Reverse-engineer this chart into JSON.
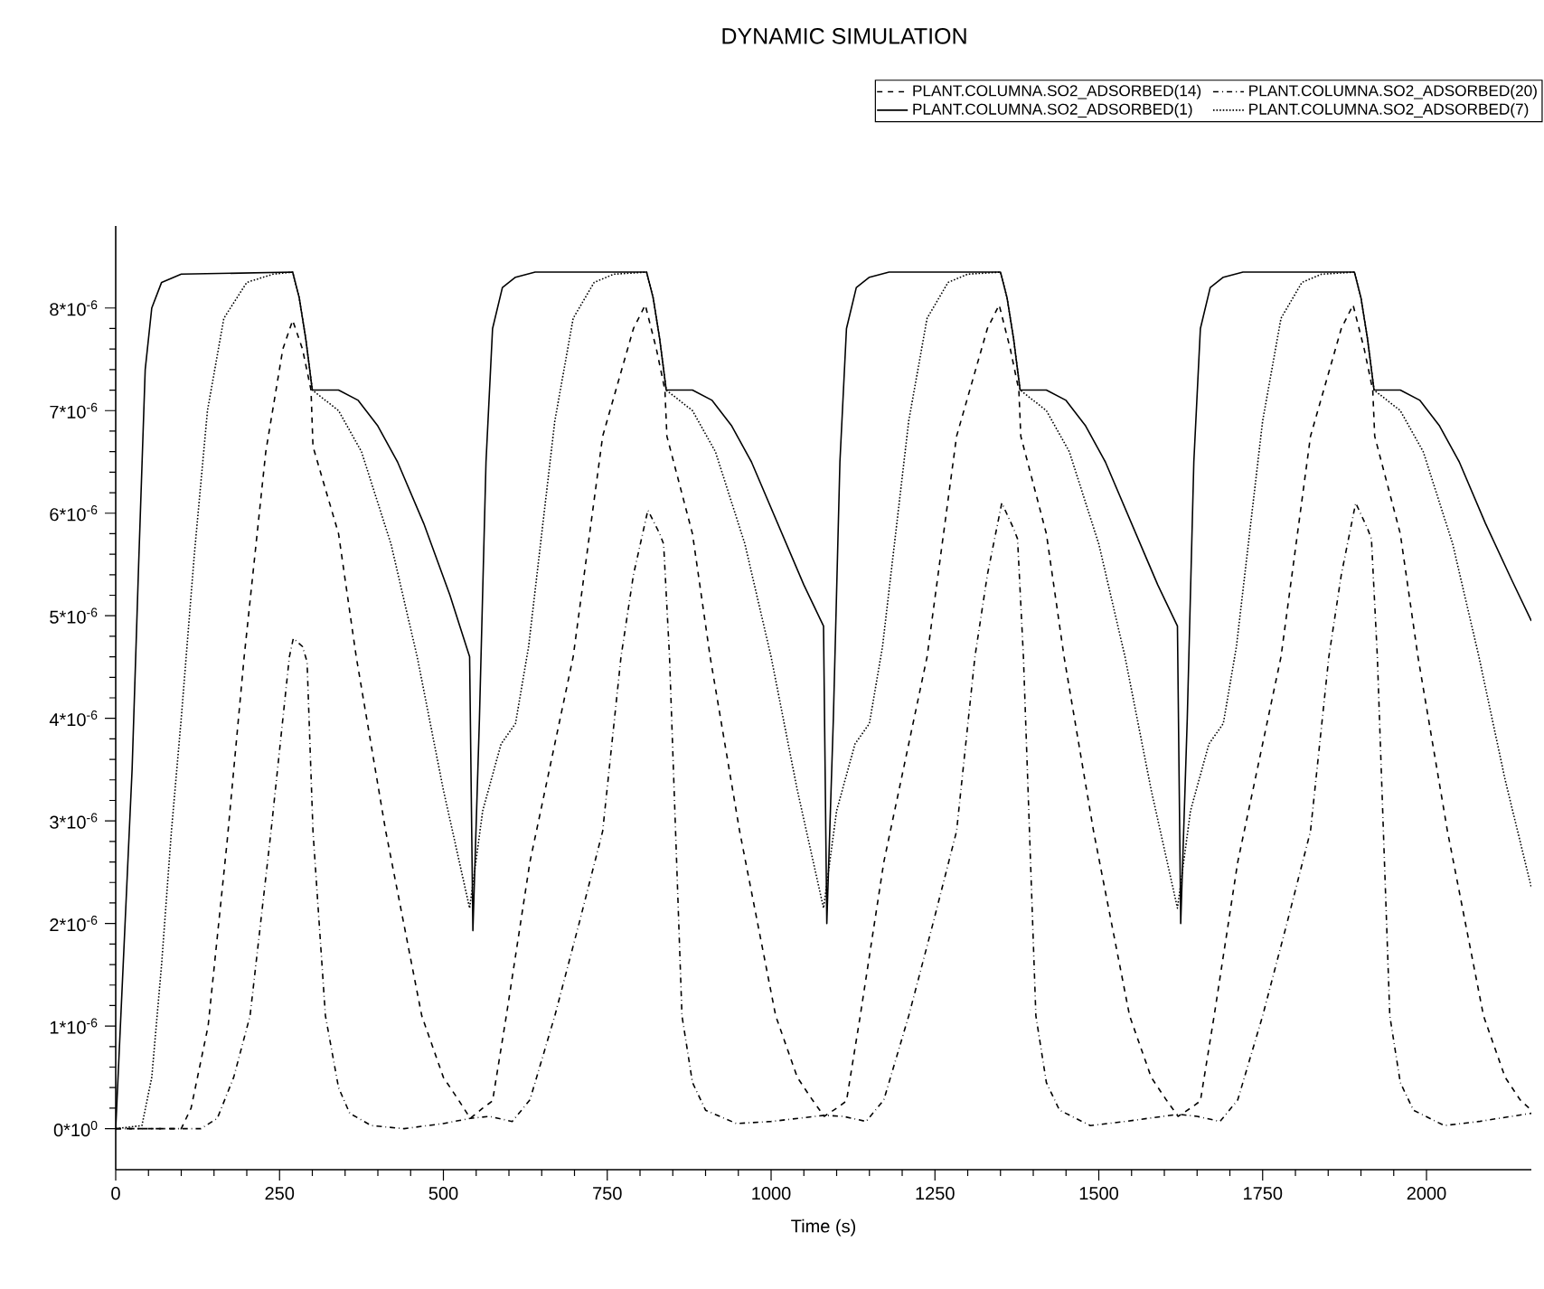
{
  "chart_data": {
    "type": "line",
    "title": "DYNAMIC SIMULATION",
    "xlabel": "Time (s)",
    "xlim": [
      0,
      2160
    ],
    "ylim": [
      -4e-07,
      8.8e-06
    ],
    "xticks": [
      0,
      250,
      500,
      750,
      1000,
      1250,
      1500,
      1750,
      2000
    ],
    "yticks": [
      {
        "value": 0,
        "label": "0*10$^{0}$"
      },
      {
        "value": 1e-06,
        "label": "1*10$^{-6}$"
      },
      {
        "value": 2e-06,
        "label": "2*10$^{-6}$"
      },
      {
        "value": 3e-06,
        "label": "3*10$^{-6}$"
      },
      {
        "value": 4e-06,
        "label": "4*10$^{-6}$"
      },
      {
        "value": 5e-06,
        "label": "5*10$^{-6}$"
      },
      {
        "value": 6e-06,
        "label": "6*10$^{-6}$"
      },
      {
        "value": 7e-06,
        "label": "7*10$^{-6}$"
      },
      {
        "value": 8e-06,
        "label": "8*10$^{-6}$"
      }
    ],
    "legend": "top",
    "grid": false,
    "marker": "none",
    "series": [
      {
        "name": "PLANT.COLUMNA.SO2_ADSORBED(14)",
        "color": "#000000",
        "line_style": "dashed",
        "x": [
          0,
          100,
          115,
          141,
          170,
          196,
          229,
          255,
          270,
          285,
          298,
          301,
          340,
          367,
          412,
          467,
          500,
          523,
          541,
          560,
          575,
          596,
          632,
          698,
          743,
          790,
          808,
          825,
          838,
          841,
          880,
          907,
          952,
          1007,
          1040,
          1063,
          1081,
          1100,
          1115,
          1136,
          1172,
          1238,
          1283,
          1330,
          1348,
          1365,
          1378,
          1381,
          1420,
          1447,
          1492,
          1547,
          1580,
          1603,
          1621,
          1640,
          1655,
          1676,
          1712,
          1778,
          1823,
          1870,
          1888,
          1905,
          1918,
          1921,
          1960,
          1987,
          2032,
          2087,
          2120,
          2143,
          2160
        ],
        "values": [
          0,
          0,
          2e-07,
          1e-06,
          2.8e-06,
          4.6e-06,
          6.6e-06,
          7.6e-06,
          7.88e-06,
          7.6e-06,
          7.2e-06,
          6.65e-06,
          5.8e-06,
          4.6e-06,
          2.9e-06,
          1.1e-06,
          5e-07,
          2.8e-07,
          1e-07,
          2e-07,
          2.7e-07,
          1.1e-06,
          2.6e-06,
          4.6e-06,
          6.75e-06,
          7.8e-06,
          8.03e-06,
          7.6e-06,
          7.2e-06,
          6.75e-06,
          5.8e-06,
          4.6e-06,
          2.9e-06,
          1.1e-06,
          5e-07,
          2.8e-07,
          1.2e-07,
          2e-07,
          2.7e-07,
          1.1e-06,
          2.6e-06,
          4.6e-06,
          6.75e-06,
          7.8e-06,
          8.03e-06,
          7.6e-06,
          7.2e-06,
          6.75e-06,
          5.8e-06,
          4.6e-06,
          2.9e-06,
          1.1e-06,
          5e-07,
          2.8e-07,
          1.2e-07,
          2e-07,
          2.7e-07,
          1.1e-06,
          2.6e-06,
          4.6e-06,
          6.75e-06,
          7.8e-06,
          8.03e-06,
          7.6e-06,
          7.2e-06,
          6.75e-06,
          5.8e-06,
          4.6e-06,
          2.9e-06,
          1.1e-06,
          5e-07,
          2.8e-07,
          1.8e-07
        ]
      },
      {
        "name": "PLANT.COLUMNA.SO2_ADSORBED(20)",
        "color": "#000000",
        "line_style": "dashdot",
        "x": [
          0,
          130,
          155,
          180,
          205,
          237,
          265,
          271,
          285,
          292,
          301,
          320,
          340,
          357,
          390,
          440,
          500,
          541,
          570,
          605,
          632,
          670,
          707,
          743,
          771,
          790,
          812,
          830,
          836,
          845,
          864,
          880,
          900,
          947,
          1000,
          1081,
          1110,
          1145,
          1172,
          1210,
          1247,
          1283,
          1311,
          1330,
          1352,
          1370,
          1376,
          1385,
          1404,
          1420,
          1440,
          1487,
          1540,
          1621,
          1650,
          1685,
          1712,
          1750,
          1787,
          1823,
          1851,
          1870,
          1892,
          1910,
          1916,
          1925,
          1944,
          1960,
          1980,
          2027,
          2080,
          2160
        ],
        "values": [
          0,
          0,
          1e-07,
          5e-07,
          1.1e-06,
          2.9e-06,
          4.6e-06,
          4.78e-06,
          4.7e-06,
          4.55e-06,
          2.9e-06,
          1.1e-06,
          4e-07,
          1.5e-07,
          3e-08,
          0,
          5e-08,
          1e-07,
          1.2e-07,
          7e-08,
          2.8e-07,
          1.1e-06,
          2e-06,
          2.9e-06,
          4.6e-06,
          5.4e-06,
          6.03e-06,
          5.8e-06,
          5.7e-06,
          4.6e-06,
          1.1e-06,
          4.5e-07,
          1.8e-07,
          5e-08,
          7e-08,
          1.3e-07,
          1.2e-07,
          7e-08,
          2.8e-07,
          1.1e-06,
          2e-06,
          2.9e-06,
          4.6e-06,
          5.4e-06,
          6.1e-06,
          5.85e-06,
          5.75e-06,
          4.6e-06,
          1.1e-06,
          4.5e-07,
          1.8e-07,
          3e-08,
          7e-08,
          1.4e-07,
          1.2e-07,
          7e-08,
          2.8e-07,
          1.1e-06,
          2e-06,
          2.9e-06,
          4.6e-06,
          5.4e-06,
          6.1e-06,
          5.85e-06,
          5.75e-06,
          4.6e-06,
          1.1e-06,
          4.5e-07,
          1.8e-07,
          3e-08,
          7e-08,
          1.5e-07
        ]
      },
      {
        "name": "PLANT.COLUMNA.SO2_ADSORBED(1)",
        "color": "#000000",
        "line_style": "solid",
        "x": [
          0,
          25,
          35,
          45,
          55,
          70,
          100,
          270,
          280,
          290,
          300,
          340,
          370,
          400,
          430,
          470,
          510,
          540,
          545,
          555,
          565,
          575,
          590,
          610,
          640,
          810,
          820,
          830,
          840,
          880,
          910,
          940,
          970,
          1010,
          1050,
          1080,
          1085,
          1095,
          1105,
          1115,
          1130,
          1150,
          1180,
          1350,
          1360,
          1370,
          1380,
          1420,
          1450,
          1480,
          1510,
          1550,
          1590,
          1620,
          1625,
          1635,
          1645,
          1655,
          1670,
          1690,
          1720,
          1890,
          1900,
          1910,
          1920,
          1960,
          1990,
          2020,
          2050,
          2090,
          2130,
          2160
        ],
        "values": [
          0,
          3.5e-06,
          5.5e-06,
          7.4e-06,
          8e-06,
          8.25e-06,
          8.33e-06,
          8.35e-06,
          8.1e-06,
          7.7e-06,
          7.2e-06,
          7.2e-06,
          7.1e-06,
          6.85e-06,
          6.5e-06,
          5.9e-06,
          5.2e-06,
          4.6e-06,
          1.93e-06,
          4e-06,
          6.5e-06,
          7.8e-06,
          8.2e-06,
          8.3e-06,
          8.35e-06,
          8.35e-06,
          8.1e-06,
          7.7e-06,
          7.2e-06,
          7.2e-06,
          7.1e-06,
          6.85e-06,
          6.5e-06,
          5.9e-06,
          5.3e-06,
          4.9e-06,
          2e-06,
          4e-06,
          6.5e-06,
          7.8e-06,
          8.2e-06,
          8.3e-06,
          8.35e-06,
          8.35e-06,
          8.1e-06,
          7.7e-06,
          7.2e-06,
          7.2e-06,
          7.1e-06,
          6.85e-06,
          6.5e-06,
          5.9e-06,
          5.3e-06,
          4.9e-06,
          2e-06,
          4e-06,
          6.5e-06,
          7.8e-06,
          8.2e-06,
          8.3e-06,
          8.35e-06,
          8.35e-06,
          8.1e-06,
          7.7e-06,
          7.2e-06,
          7.2e-06,
          7.1e-06,
          6.85e-06,
          6.5e-06,
          5.9e-06,
          5.35e-06,
          4.95e-06
        ]
      },
      {
        "name": "PLANT.COLUMNA.SO2_ADSORBED(7)",
        "color": "#000000",
        "line_style": "dotted",
        "x": [
          0,
          40,
          55,
          70,
          85,
          100,
          120,
          140,
          165,
          200,
          240,
          270,
          280,
          290,
          300,
          310,
          340,
          375,
          420,
          460,
          500,
          540,
          560,
          588,
          610,
          630,
          650,
          670,
          698,
          730,
          760,
          810,
          820,
          830,
          840,
          850,
          880,
          915,
          960,
          1000,
          1040,
          1080,
          1100,
          1128,
          1150,
          1170,
          1190,
          1210,
          1238,
          1270,
          1300,
          1350,
          1360,
          1370,
          1380,
          1390,
          1420,
          1455,
          1500,
          1540,
          1580,
          1620,
          1640,
          1668,
          1690,
          1710,
          1730,
          1750,
          1778,
          1810,
          1840,
          1890,
          1900,
          1910,
          1920,
          1930,
          1960,
          1995,
          2040,
          2080,
          2120,
          2160
        ],
        "values": [
          0,
          3e-08,
          5e-07,
          1.6e-06,
          2.9e-06,
          4e-06,
          5.6e-06,
          7e-06,
          7.9e-06,
          8.25e-06,
          8.33e-06,
          8.35e-06,
          8.1e-06,
          7.7e-06,
          7.2e-06,
          7.15e-06,
          7e-06,
          6.6e-06,
          5.7e-06,
          4.6e-06,
          3.3e-06,
          2.15e-06,
          3.1e-06,
          3.75e-06,
          3.95e-06,
          4.7e-06,
          5.8e-06,
          6.9e-06,
          7.9e-06,
          8.25e-06,
          8.33e-06,
          8.35e-06,
          8.1e-06,
          7.7e-06,
          7.2e-06,
          7.15e-06,
          7e-06,
          6.6e-06,
          5.7e-06,
          4.6e-06,
          3.3e-06,
          2.15e-06,
          3.1e-06,
          3.75e-06,
          3.95e-06,
          4.7e-06,
          5.8e-06,
          6.9e-06,
          7.9e-06,
          8.25e-06,
          8.33e-06,
          8.35e-06,
          8.1e-06,
          7.7e-06,
          7.2e-06,
          7.15e-06,
          7e-06,
          6.6e-06,
          5.7e-06,
          4.6e-06,
          3.3e-06,
          2.15e-06,
          3.1e-06,
          3.75e-06,
          3.95e-06,
          4.7e-06,
          5.8e-06,
          6.9e-06,
          7.9e-06,
          8.25e-06,
          8.33e-06,
          8.35e-06,
          8.1e-06,
          7.7e-06,
          7.2e-06,
          7.15e-06,
          7e-06,
          6.6e-06,
          5.7e-06,
          4.6e-06,
          3.4e-06,
          2.35e-06
        ]
      }
    ]
  }
}
